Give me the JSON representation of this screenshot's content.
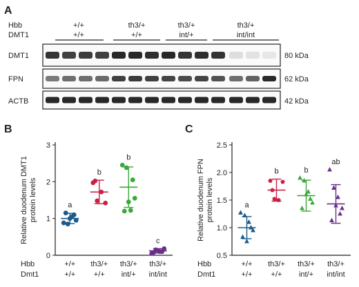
{
  "panel_a": {
    "letter": "A",
    "row_labels": {
      "hbb": "Hbb",
      "dmt1": "DMT1"
    },
    "groups": [
      {
        "hbb": "+/+",
        "dmt1": "+/+"
      },
      {
        "hbb": "th3/+",
        "dmt1": "+/+"
      },
      {
        "hbb": "th3/+",
        "dmt1": "int/+"
      },
      {
        "hbb": "th3/+",
        "dmt1": "int/int"
      }
    ],
    "blots": [
      {
        "protein": "DMT1",
        "kda": "80 kDa"
      },
      {
        "protein": "FPN",
        "kda": "62 kDa"
      },
      {
        "protein": "ACTB",
        "kda": "42 kDa"
      }
    ]
  },
  "x_row_labels": {
    "hbb": "Hbb",
    "dmt1": "Dmt1"
  },
  "colors": {
    "wt": "#1a5a8a",
    "th3": "#cc1f45",
    "th3_int": "#3aa83a",
    "th3_intint": "#6a2f8a"
  },
  "chart_data": [
    {
      "panel": "B",
      "type": "scatter",
      "ylabel": "Relative duodenum DMT1 protein levels",
      "ylabel_lines": [
        "Relative duodenum DMT1",
        "protein levels"
      ],
      "ylim": [
        0,
        3
      ],
      "yticks": [
        "0",
        "1",
        "2",
        "3"
      ],
      "categories": [
        {
          "hbb": "+/+",
          "dmt1": "+/+"
        },
        {
          "hbb": "th3/+",
          "dmt1": "+/+"
        },
        {
          "hbb": "th3/+",
          "dmt1": "int/+"
        },
        {
          "hbb": "th3/+",
          "dmt1": "int/int"
        }
      ],
      "series": [
        {
          "marker": "circle",
          "color": "#1a5a8a",
          "letter": "a",
          "mean": 1.0,
          "sd": 0.14,
          "points": [
            0.88,
            0.85,
            1.05,
            0.95,
            1.15,
            1.0,
            1.1
          ]
        },
        {
          "marker": "circle",
          "color": "#cc1f45",
          "letter": "b",
          "mean": 1.72,
          "sd": 0.32,
          "points": [
            1.97,
            1.48,
            1.72,
            1.42,
            2.02
          ]
        },
        {
          "marker": "circle",
          "color": "#3aa83a",
          "letter": "b",
          "mean": 1.85,
          "sd": 0.55,
          "points": [
            2.45,
            2.38,
            1.22,
            1.55,
            1.2,
            1.45,
            2.05
          ]
        },
        {
          "marker": "circle",
          "color": "#6a2f8a",
          "letter": "c",
          "mean": 0.12,
          "sd": 0.06,
          "points": [
            0.05,
            0.15,
            0.1,
            0.18,
            0.08,
            0.13,
            0.1
          ]
        }
      ]
    },
    {
      "panel": "C",
      "type": "scatter",
      "ylabel": "Relative duodenum FPN protein levels",
      "ylabel_lines": [
        "Relative duodenum FPN",
        "protein levels"
      ],
      "ylim": [
        0.5,
        2.5
      ],
      "yticks": [
        "0.5",
        "1.0",
        "1.5",
        "2.0",
        "2.5"
      ],
      "categories": [
        {
          "hbb": "+/+",
          "dmt1": "+/+"
        },
        {
          "hbb": "th3/+",
          "dmt1": "+/+"
        },
        {
          "hbb": "th3/+",
          "dmt1": "int/+"
        },
        {
          "hbb": "th3/+",
          "dmt1": "int/int"
        }
      ],
      "series": [
        {
          "marker": "triangle",
          "color": "#1a5a8a",
          "letter": "a",
          "mean": 1.0,
          "sd": 0.2,
          "points": [
            1.27,
            1.22,
            1.1,
            0.95,
            0.83,
            0.75,
            1.0
          ]
        },
        {
          "marker": "pentagon",
          "color": "#cc1f45",
          "letter": "b",
          "mean": 1.68,
          "sd": 0.2,
          "points": [
            1.85,
            1.52,
            1.5,
            1.83,
            1.68
          ]
        },
        {
          "marker": "triangle",
          "color": "#3aa83a",
          "letter": "b",
          "mean": 1.58,
          "sd": 0.28,
          "points": [
            1.9,
            1.85,
            1.65,
            1.45,
            1.35,
            1.6,
            1.52
          ]
        },
        {
          "marker": "triangle",
          "color": "#6a2f8a",
          "letter": "ab",
          "mean": 1.43,
          "sd": 0.35,
          "points": [
            2.05,
            1.72,
            1.55,
            1.35,
            1.13,
            1.4,
            1.25
          ]
        }
      ]
    }
  ]
}
